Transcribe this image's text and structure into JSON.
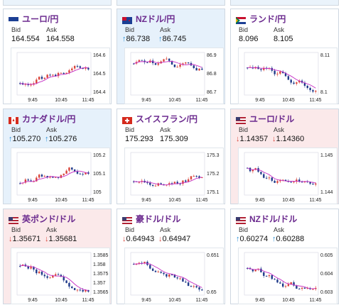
{
  "cards": [
    {
      "pair": "ユーロ/円",
      "bid": "164.554",
      "ask": "164.558",
      "dir": "none",
      "flag": "eu",
      "bg": "white",
      "y_ticks": [
        "164.6",
        "164.5",
        "164.4"
      ],
      "x_ticks": [
        "9:45",
        "10:45",
        "11:45"
      ]
    },
    {
      "pair": "NZドル/円",
      "bid": "86.738",
      "ask": "86.745",
      "dir": "up",
      "flag": "nz",
      "bg": "blue",
      "y_ticks": [
        "86.9",
        "86.8",
        "86.7"
      ],
      "x_ticks": [
        "9:45",
        "10:45",
        "11:45"
      ]
    },
    {
      "pair": "ランド/円",
      "bid": "8.096",
      "ask": "8.105",
      "dir": "none",
      "flag": "za",
      "bg": "white",
      "y_ticks": [
        "8.11",
        "8.1"
      ],
      "x_ticks": [
        "9:45",
        "10:45",
        "11:45"
      ]
    },
    {
      "pair": "カナダドル/円",
      "bid": "105.270",
      "ask": "105.276",
      "dir": "up",
      "flag": "ca",
      "bg": "blue",
      "y_ticks": [
        "105.2",
        "105.1",
        "105"
      ],
      "x_ticks": [
        "9:45",
        "10:45",
        "11:45"
      ]
    },
    {
      "pair": "スイスフラン/円",
      "bid": "175.293",
      "ask": "175.309",
      "dir": "none",
      "flag": "ch",
      "bg": "white",
      "y_ticks": [
        "175.3",
        "175.2",
        "175.1"
      ],
      "x_ticks": [
        "9:45",
        "10:45",
        "11:45"
      ]
    },
    {
      "pair": "ユーロ/ドル",
      "bid": "1.14357",
      "ask": "1.14360",
      "dir": "down",
      "flag": "us",
      "bg": "pink",
      "y_ticks": [
        "1.145",
        "1.144"
      ],
      "x_ticks": [
        "9:45",
        "10:45",
        "11:45"
      ]
    },
    {
      "pair": "英ポンド/ドル",
      "bid": "1.35671",
      "ask": "1.35681",
      "dir": "down",
      "flag": "us",
      "bg": "pink",
      "y_ticks": [
        "1.3585",
        "1.358",
        "1.3575",
        "1.357",
        "1.3565"
      ],
      "x_ticks": [
        "9:45",
        "10:45",
        "11:45"
      ]
    },
    {
      "pair": "豪ドル/ドル",
      "bid": "0.64943",
      "ask": "0.64947",
      "dir": "down",
      "flag": "us",
      "bg": "white",
      "y_ticks": [
        "0.651",
        "0.65"
      ],
      "x_ticks": [
        "9:45",
        "10:45",
        "11:45"
      ]
    },
    {
      "pair": "NZドル/ドル",
      "bid": "0.60274",
      "ask": "0.60288",
      "dir": "up",
      "flag": "us",
      "bg": "white",
      "y_ticks": [
        "0.605",
        "0.604",
        "0.603"
      ],
      "x_ticks": [
        "9:45",
        "10:45",
        "11:45"
      ]
    }
  ],
  "labels": {
    "bid": "Bid",
    "ask": "Ask"
  },
  "colors": {
    "up": "#2a8fd8",
    "down": "#d9443a",
    "candle_up": "#d9443a",
    "candle_down": "#1f3a8a",
    "ma": "#c52bc4"
  },
  "chart_data": [
    {
      "type": "candlestick",
      "x_ticks": [
        "9:45",
        "10:45",
        "11:45"
      ],
      "trend": "up",
      "ylim": [
        164.35,
        164.65
      ]
    },
    {
      "type": "candlestick",
      "x_ticks": [
        "9:45",
        "10:45",
        "11:45"
      ],
      "trend": "down",
      "ylim": [
        86.65,
        86.95
      ]
    },
    {
      "type": "candlestick",
      "x_ticks": [
        "9:45",
        "10:45",
        "11:45"
      ],
      "trend": "down",
      "ylim": [
        8.085,
        8.12
      ]
    },
    {
      "type": "candlestick",
      "x_ticks": [
        "9:45",
        "10:45",
        "11:45"
      ],
      "trend": "up",
      "ylim": [
        104.95,
        105.3
      ]
    },
    {
      "type": "candlestick",
      "x_ticks": [
        "9:45",
        "10:45",
        "11:45"
      ],
      "trend": "up",
      "ylim": [
        175.05,
        175.35
      ]
    },
    {
      "type": "candlestick",
      "x_ticks": [
        "9:45",
        "10:45",
        "11:45"
      ],
      "trend": "down",
      "ylim": [
        1.1432,
        1.1458
      ]
    },
    {
      "type": "candlestick",
      "x_ticks": [
        "9:45",
        "10:45",
        "11:45"
      ],
      "trend": "down",
      "ylim": [
        1.3562,
        1.359
      ]
    },
    {
      "type": "candlestick",
      "x_ticks": [
        "9:45",
        "10:45",
        "11:45"
      ],
      "trend": "down",
      "ylim": [
        0.6492,
        0.6518
      ]
    },
    {
      "type": "candlestick",
      "x_ticks": [
        "9:45",
        "10:45",
        "11:45"
      ],
      "trend": "down",
      "ylim": [
        0.6025,
        0.6055
      ]
    }
  ]
}
